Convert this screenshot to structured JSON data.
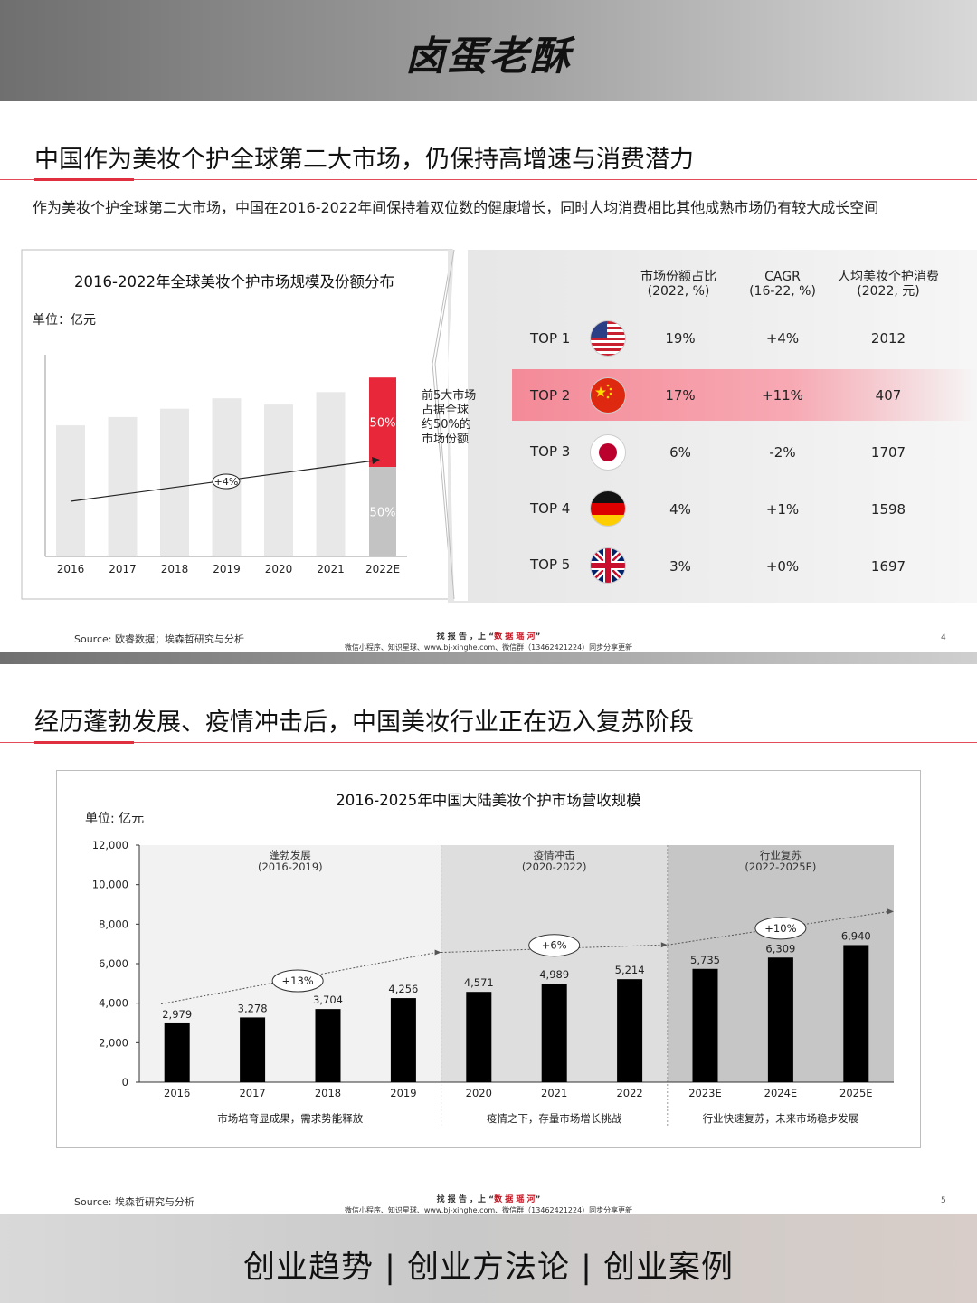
{
  "brand": {
    "name": "卤蛋老酥"
  },
  "slide1": {
    "title": "中国作为美妆个护全球第二大市场，仍保持高增速与消费潜力",
    "subtitle": "作为美妆个护全球第二大市场，中国在2016-2022年间保持着双位数的健康增长，同时人均消费相比其他成熟市场仍有较大成长空间",
    "chart_title": "2016-2022年全球美妆个护市场规模及份额分布",
    "unit": "单位：亿元",
    "note": [
      "前5大市场",
      "占据全球",
      "约50%的",
      "市场份额"
    ],
    "table_headers": [
      [
        "市场份额占比",
        "(2022, %)"
      ],
      [
        "CAGR",
        "(16-22, %)"
      ],
      [
        "人均美妆个护消费",
        "(2022, 元)"
      ]
    ],
    "rows": [
      {
        "rank": "TOP 1",
        "flag": "usa-flag-icon",
        "share": "19%",
        "cagr": "+4%",
        "per_capita": "2012"
      },
      {
        "rank": "TOP 2",
        "flag": "china-flag-icon",
        "share": "17%",
        "cagr": "+11%",
        "per_capita": "407",
        "highlight": true
      },
      {
        "rank": "TOP 3",
        "flag": "japan-flag-icon",
        "share": "6%",
        "cagr": "-2%",
        "per_capita": "1707"
      },
      {
        "rank": "TOP 4",
        "flag": "germany-flag-icon",
        "share": "4%",
        "cagr": "+1%",
        "per_capita": "1598"
      },
      {
        "rank": "TOP 5",
        "flag": "uk-flag-icon",
        "share": "3%",
        "cagr": "+0%",
        "per_capita": "1697"
      }
    ],
    "source": "Source: 欧睿数据；埃森哲研究与分析",
    "footer_line1_prefix": "找 报 告 ，上 “",
    "footer_line1_brand": "数 据 瑶 河",
    "footer_line1_suffix": "”",
    "footer_line2": "微信小程序、知识星球、www.bj-xinghe.com、微信群（13462421224）同步分享更新",
    "page": "4"
  },
  "slide2": {
    "title": "经历蓬勃发展、疫情冲击后，中国美妆行业正在迈入复苏阶段",
    "chart_title": "2016-2025年中国大陆美妆个护市场营收规模",
    "unit": "单位: 亿元",
    "source": "Source: 埃森哲研究与分析",
    "footer_line1_prefix": "找 报 告 ，上 “",
    "footer_line1_brand": "数 据 瑶 河",
    "footer_line1_suffix": "”",
    "footer_line2": "微信小程序、知识星球、www.bj-xinghe.com、微信群（13462421224）同步分享更新",
    "page": "5"
  },
  "bottom_banner": "创业趋势 | 创业方法论 | 创业案例",
  "chart_data": [
    {
      "type": "bar",
      "title": "2016-2022年全球美妆个护市场规模及份额分布",
      "ylabel": "单位：亿元",
      "categories": [
        "2016",
        "2017",
        "2018",
        "2019",
        "2020",
        "2021",
        "2022E"
      ],
      "values": [
        0.63,
        0.67,
        0.71,
        0.76,
        0.73,
        0.79,
        0.86
      ],
      "split_last": {
        "labels": [
          "50%",
          "50%"
        ],
        "colors": [
          "#e8283a",
          "#c3c3c3"
        ]
      },
      "annotation": "+4%",
      "colors": {
        "bar": "#e8e8e8"
      }
    },
    {
      "type": "bar",
      "title": "2016-2025年中国大陆美妆个护市场营收规模",
      "ylabel": "单位: 亿元",
      "categories": [
        "2016",
        "2017",
        "2018",
        "2019",
        "2020",
        "2021",
        "2022",
        "2023E",
        "2024E",
        "2025E"
      ],
      "values": [
        2979,
        3278,
        3704,
        4256,
        4571,
        4989,
        5214,
        5735,
        6309,
        6940
      ],
      "value_labels": [
        "2,979",
        "3,278",
        "3,704",
        "4,256",
        "4,571",
        "4,989",
        "5,214",
        "5,735",
        "6,309",
        "6,940"
      ],
      "ylim": [
        0,
        12000
      ],
      "yticks": [
        "0",
        "2,000",
        "4,000",
        "6,000",
        "8,000",
        "10,000",
        "12,000"
      ],
      "phases": [
        {
          "name": "蓬勃发展",
          "range": "(2016-2019)",
          "growth": "+13%",
          "caption": "市场培育显成果，需求势能释放",
          "color": "#f2f2f2"
        },
        {
          "name": "疫情冲击",
          "range": "(2020-2022)",
          "growth": "+6%",
          "caption": "疫情之下，存量市场增长挑战",
          "color": "#dedede"
        },
        {
          "name": "行业复苏",
          "range": "(2022-2025E)",
          "growth": "+10%",
          "caption": "行业快速复苏，未来市场稳步发展",
          "color": "#c6c6c6"
        }
      ],
      "colors": {
        "bar": "#000000"
      }
    }
  ]
}
